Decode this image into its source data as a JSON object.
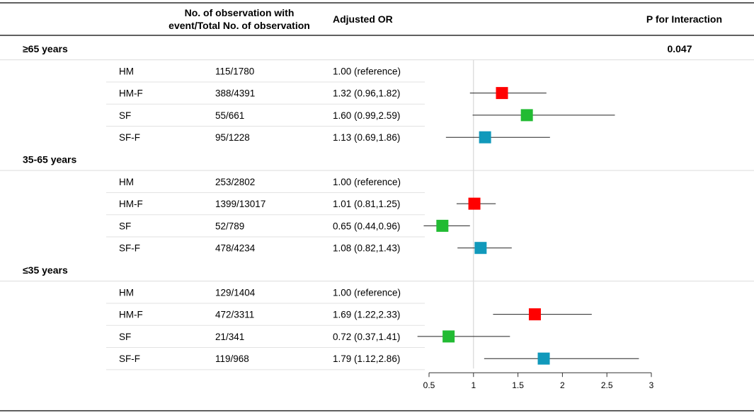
{
  "chart_data": {
    "type": "forest",
    "headers": {
      "observations": [
        "No. of observation with",
        "event/Total No. of observation"
      ],
      "or": "Adjusted OR",
      "p": "P for Interaction"
    },
    "groups": [
      {
        "label": "≥65 years",
        "p_interaction": "0.047",
        "rows": [
          {
            "label": "HM",
            "obs": "115/1780",
            "or_text": "1.00 (reference)",
            "or": null,
            "lo": null,
            "hi": null,
            "color": null
          },
          {
            "label": "HM-F",
            "obs": "388/4391",
            "or_text": "1.32 (0.96,1.82)",
            "or": 1.32,
            "lo": 0.96,
            "hi": 1.82,
            "color": "#ff0000"
          },
          {
            "label": "SF",
            "obs": "55/661",
            "or_text": "1.60 (0.99,2.59)",
            "or": 1.6,
            "lo": 0.99,
            "hi": 2.59,
            "color": "#22bb33"
          },
          {
            "label": "SF-F",
            "obs": "95/1228",
            "or_text": "1.13 (0.69,1.86)",
            "or": 1.13,
            "lo": 0.69,
            "hi": 1.86,
            "color": "#1199bb"
          }
        ]
      },
      {
        "label": "35-65 years",
        "p_interaction": "",
        "rows": [
          {
            "label": "HM",
            "obs": "253/2802",
            "or_text": "1.00 (reference)",
            "or": null,
            "lo": null,
            "hi": null,
            "color": null
          },
          {
            "label": "HM-F",
            "obs": "1399/13017",
            "or_text": "1.01 (0.81,1.25)",
            "or": 1.01,
            "lo": 0.81,
            "hi": 1.25,
            "color": "#ff0000"
          },
          {
            "label": "SF",
            "obs": "52/789",
            "or_text": "0.65 (0.44,0.96)",
            "or": 0.65,
            "lo": 0.44,
            "hi": 0.96,
            "color": "#22bb33"
          },
          {
            "label": "SF-F",
            "obs": "478/4234",
            "or_text": "1.08 (0.82,1.43)",
            "or": 1.08,
            "lo": 0.82,
            "hi": 1.43,
            "color": "#1199bb"
          }
        ]
      },
      {
        "label": "≤35 years",
        "p_interaction": "",
        "rows": [
          {
            "label": "HM",
            "obs": "129/1404",
            "or_text": "1.00 (reference)",
            "or": null,
            "lo": null,
            "hi": null,
            "color": null
          },
          {
            "label": "HM-F",
            "obs": "472/3311",
            "or_text": "1.69 (1.22,2.33)",
            "or": 1.69,
            "lo": 1.22,
            "hi": 2.33,
            "color": "#ff0000"
          },
          {
            "label": "SF",
            "obs": "21/341",
            "or_text": "0.72 (0.37,1.41)",
            "or": 0.72,
            "lo": 0.37,
            "hi": 1.41,
            "color": "#22bb33"
          },
          {
            "label": "SF-F",
            "obs": "119/968",
            "or_text": "1.79 (1.12,2.86)",
            "or": 1.79,
            "lo": 1.12,
            "hi": 2.86,
            "color": "#1199bb"
          }
        ]
      }
    ],
    "x_axis": {
      "ticks": [
        0.5,
        1,
        1.5,
        2,
        2.5,
        3
      ],
      "tick_labels": [
        "0.5",
        "1",
        "1.5",
        "2",
        "2.5",
        "3"
      ],
      "xlim": [
        0.5,
        3
      ],
      "reference_line": 1
    }
  }
}
